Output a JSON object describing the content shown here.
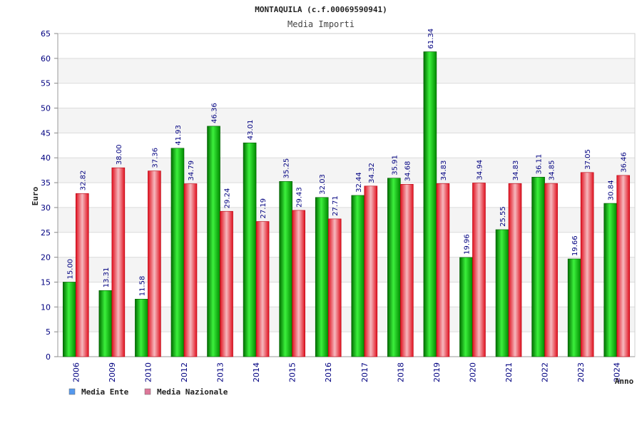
{
  "chart_data": {
    "type": "bar",
    "title": "MONTAQUILA (c.f.00069590941)",
    "subtitle": "Media Importi",
    "ylabel": "Euro",
    "xlabel": "Anno",
    "ylim": [
      0,
      65
    ],
    "ytick_step": 5,
    "grid": true,
    "legend_position": "bottom-left",
    "categories": [
      "2006",
      "2009",
      "2010",
      "2012",
      "2013",
      "2014",
      "2015",
      "2016",
      "2017",
      "2018",
      "2019",
      "2020",
      "2021",
      "2022",
      "2023",
      "2024"
    ],
    "series": [
      {
        "name": "Media Ente",
        "color": "#00b000",
        "legend_color": "#5599ee",
        "values": [
          15.0,
          13.31,
          11.58,
          41.93,
          46.36,
          43.01,
          35.25,
          32.03,
          32.44,
          35.91,
          61.34,
          19.96,
          25.55,
          36.11,
          19.66,
          30.84
        ],
        "labels": [
          "15.00",
          "13.31",
          "11.58",
          "41.93",
          "46.36",
          "43.01",
          "35.25",
          "32.03",
          "32.44",
          "35.91",
          "61.34",
          "19.96",
          "25.55",
          "36.11",
          "19.66",
          "30.84"
        ]
      },
      {
        "name": "Media Nazionale",
        "color": "#e81a2a",
        "legend_color": "#dd7799",
        "values": [
          32.82,
          38.0,
          37.36,
          34.79,
          29.24,
          27.19,
          29.43,
          27.71,
          34.32,
          34.68,
          34.83,
          34.94,
          34.83,
          34.85,
          37.05,
          36.46
        ],
        "labels": [
          "32.82",
          "38.00",
          "37.36",
          "34.79",
          "29.24",
          "27.19",
          "29.43",
          "27.71",
          "34.32",
          "34.68",
          "34.83",
          "34.94",
          "34.83",
          "34.85",
          "37.05",
          "36.46"
        ]
      }
    ]
  }
}
